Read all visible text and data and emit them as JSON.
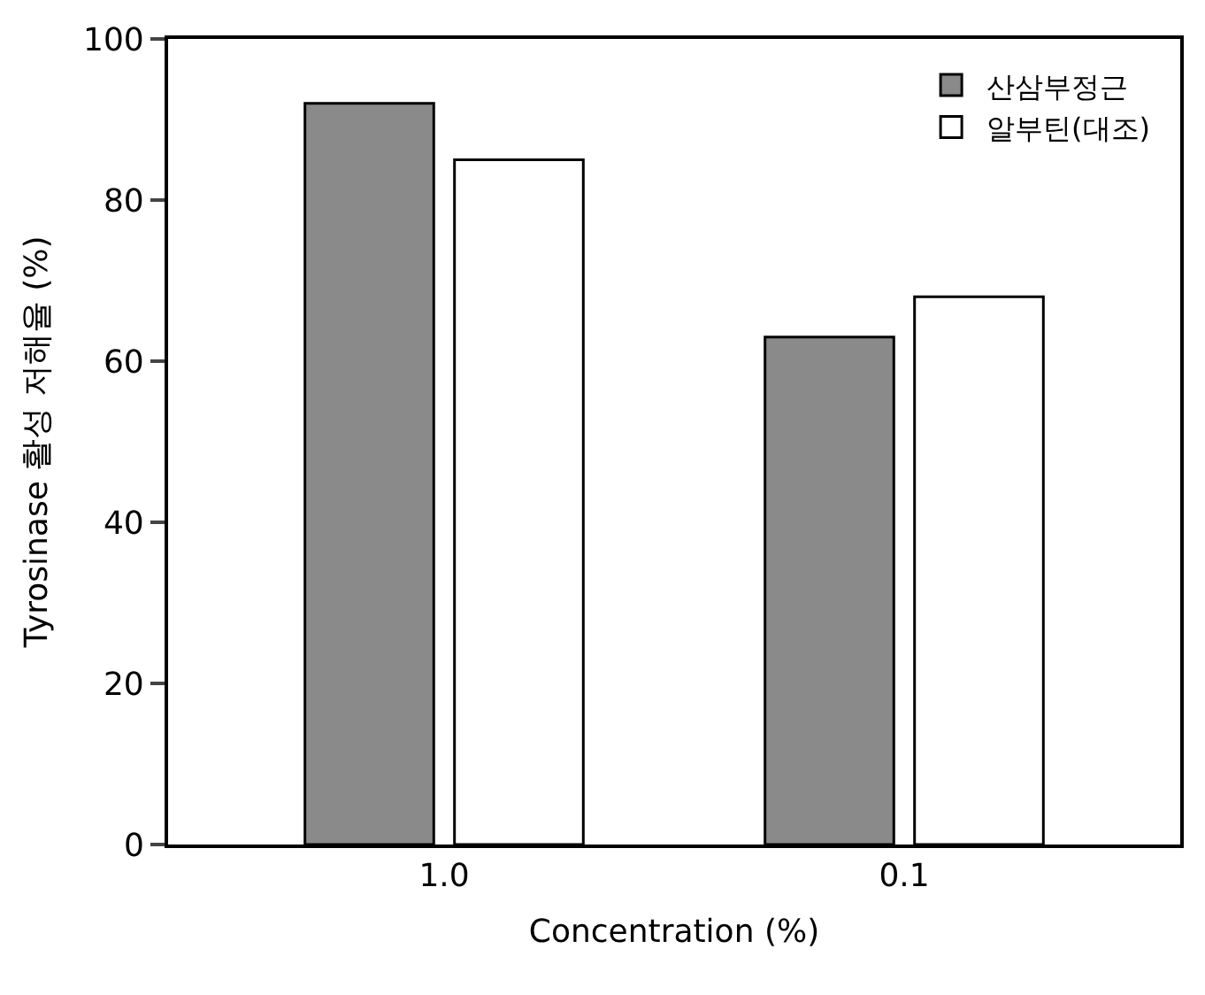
{
  "chart_data": {
    "type": "bar",
    "xlabel": "Concentration (%)",
    "ylabel": "Tyrosinase 활성 저해율 (%)",
    "categories": [
      "1.0",
      "0.1"
    ],
    "series": [
      {
        "name": "산삼부정근",
        "color": "#8a8a8a",
        "values": [
          92,
          63
        ]
      },
      {
        "name": "알부틴(대조)",
        "color": "#ffffff",
        "values": [
          85,
          68
        ]
      }
    ],
    "ylim": [
      0,
      100
    ],
    "yticks": [
      0,
      20,
      40,
      60,
      80,
      100
    ],
    "legend": "top right"
  }
}
